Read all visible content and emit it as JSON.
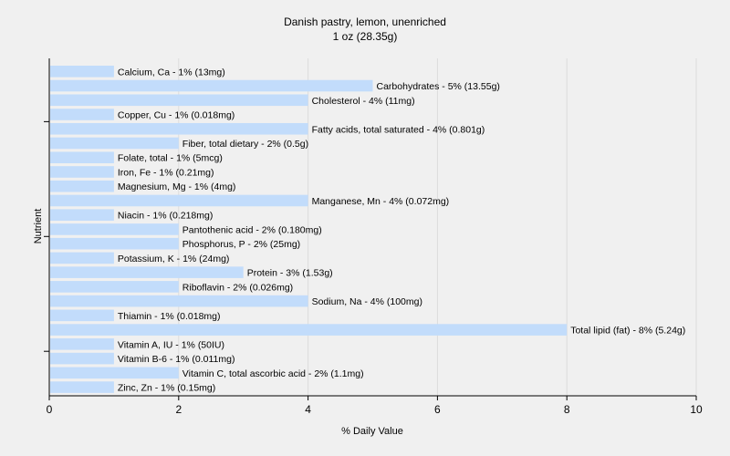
{
  "chart_data": {
    "type": "bar",
    "orientation": "horizontal",
    "title": "Danish pastry, lemon, unenriched",
    "subtitle": "1 oz (28.35g)",
    "xlabel": "% Daily Value",
    "ylabel": "Nutrient",
    "xlim": [
      0,
      10
    ],
    "xticks": [
      "0",
      "2",
      "4",
      "6",
      "8",
      "10"
    ],
    "grid": true,
    "bar_color": "#c2dcfb",
    "categories": [
      "Calcium, Ca",
      "Carbohydrates",
      "Cholesterol",
      "Copper, Cu",
      "Fatty acids, total saturated",
      "Fiber, total dietary",
      "Folate, total",
      "Iron, Fe",
      "Magnesium, Mg",
      "Manganese, Mn",
      "Niacin",
      "Pantothenic acid",
      "Phosphorus, P",
      "Potassium, K",
      "Protein",
      "Riboflavin",
      "Sodium, Na",
      "Thiamin",
      "Total lipid (fat)",
      "Vitamin A, IU",
      "Vitamin B-6",
      "Vitamin C, total ascorbic acid",
      "Zinc, Zn"
    ],
    "values": [
      1,
      5,
      4,
      1,
      4,
      2,
      1,
      1,
      1,
      4,
      1,
      2,
      2,
      1,
      3,
      2,
      4,
      1,
      8,
      1,
      1,
      2,
      1
    ],
    "labels": [
      "Calcium, Ca - 1% (13mg)",
      "Carbohydrates - 5% (13.55g)",
      "Cholesterol - 4% (11mg)",
      "Copper, Cu - 1% (0.018mg)",
      "Fatty acids, total saturated - 4% (0.801g)",
      "Fiber, total dietary - 2% (0.5g)",
      "Folate, total - 1% (5mcg)",
      "Iron, Fe - 1% (0.21mg)",
      "Magnesium, Mg - 1% (4mg)",
      "Manganese, Mn - 4% (0.072mg)",
      "Niacin - 1% (0.218mg)",
      "Pantothenic acid - 2% (0.180mg)",
      "Phosphorus, P - 2% (25mg)",
      "Potassium, K - 1% (24mg)",
      "Protein - 3% (1.53g)",
      "Riboflavin - 2% (0.026mg)",
      "Sodium, Na - 4% (100mg)",
      "Thiamin - 1% (0.018mg)",
      "Total lipid (fat) - 8% (5.24g)",
      "Vitamin A, IU - 1% (50IU)",
      "Vitamin B-6 - 1% (0.011mg)",
      "Vitamin C, total ascorbic acid - 2% (1.1mg)",
      "Zinc, Zn - 1% (0.15mg)"
    ]
  }
}
